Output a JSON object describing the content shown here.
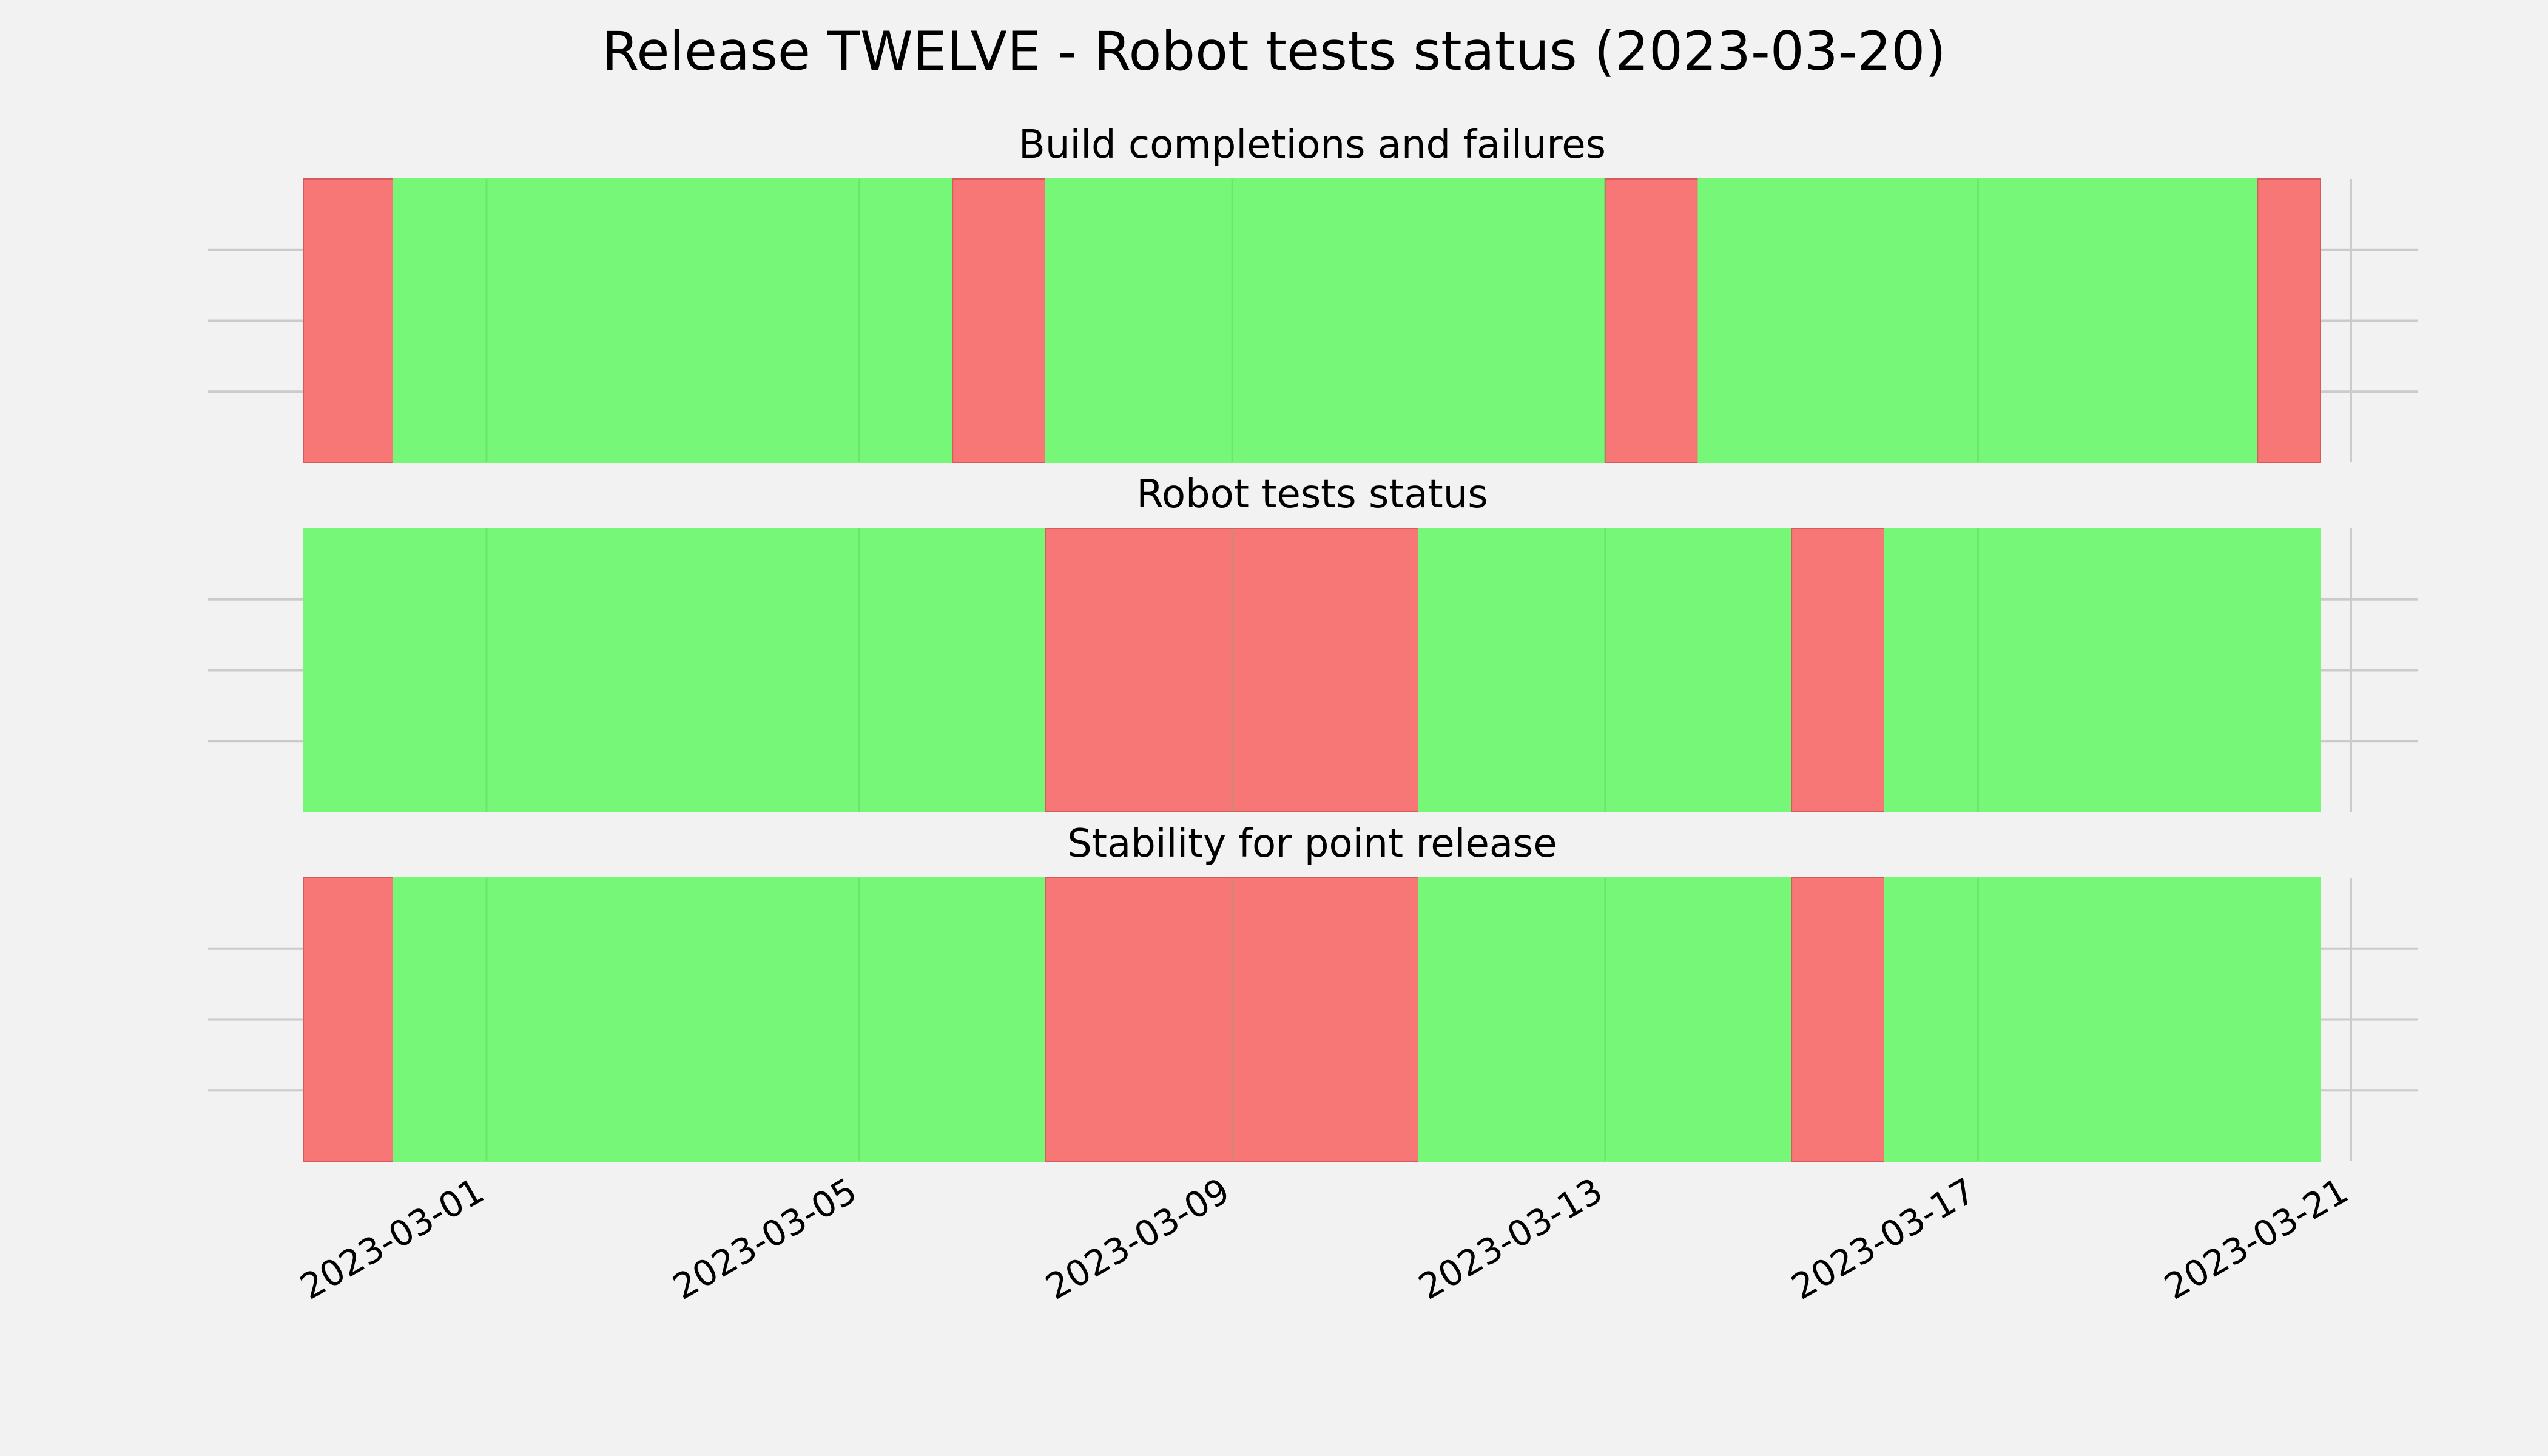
{
  "chart_data": {
    "type": "timeline",
    "title": "Release TWELVE - Robot tests status (2023-03-20)",
    "x_domain": [
      "2023-02-27",
      "2023-03-21"
    ],
    "x_ticks": [
      "2023-03-01",
      "2023-03-05",
      "2023-03-09",
      "2023-03-13",
      "2023-03-17",
      "2023-03-21"
    ],
    "colors": {
      "pass": "#77f777",
      "fail": "#f77777"
    },
    "panels": [
      {
        "title": "Build completions and failures",
        "segments": [
          {
            "start": "2023-02-27T00:00",
            "end": "2023-02-28T00:00",
            "status": "fail"
          },
          {
            "start": "2023-02-28T00:00",
            "end": "2023-03-06T00:00",
            "status": "pass"
          },
          {
            "start": "2023-03-06T00:00",
            "end": "2023-03-07T00:00",
            "status": "fail"
          },
          {
            "start": "2023-03-07T00:00",
            "end": "2023-03-13T00:00",
            "status": "pass"
          },
          {
            "start": "2023-03-13T00:00",
            "end": "2023-03-14T00:00",
            "status": "fail"
          },
          {
            "start": "2023-03-14T00:00",
            "end": "2023-03-20T00:00",
            "status": "pass"
          },
          {
            "start": "2023-03-20T00:00",
            "end": "2023-03-21T00:00",
            "status": "fail"
          },
          {
            "start": "2023-03-21T00:00",
            "end": "2023-03-21T15:00",
            "status": "pass"
          }
        ]
      },
      {
        "title": "Robot tests status",
        "segments": [
          {
            "start": "2023-02-27T00:00",
            "end": "2023-03-07T00:00",
            "status": "pass"
          },
          {
            "start": "2023-03-07T00:00",
            "end": "2023-03-11T00:00",
            "status": "fail"
          },
          {
            "start": "2023-03-11T00:00",
            "end": "2023-03-15T00:00",
            "status": "pass"
          },
          {
            "start": "2023-03-15T00:00",
            "end": "2023-03-16T00:00",
            "status": "fail"
          },
          {
            "start": "2023-03-16T00:00",
            "end": "2023-03-21T15:00",
            "status": "pass"
          }
        ]
      },
      {
        "title": "Stability for point release",
        "segments": [
          {
            "start": "2023-02-27T00:00",
            "end": "2023-02-28T00:00",
            "status": "fail"
          },
          {
            "start": "2023-02-28T00:00",
            "end": "2023-03-07T00:00",
            "status": "pass"
          },
          {
            "start": "2023-03-07T00:00",
            "end": "2023-03-11T00:00",
            "status": "fail"
          },
          {
            "start": "2023-03-11T00:00",
            "end": "2023-03-15T00:00",
            "status": "pass"
          },
          {
            "start": "2023-03-15T00:00",
            "end": "2023-03-16T00:00",
            "status": "fail"
          },
          {
            "start": "2023-03-16T00:00",
            "end": "2023-03-21T15:00",
            "status": "pass"
          }
        ]
      }
    ]
  }
}
